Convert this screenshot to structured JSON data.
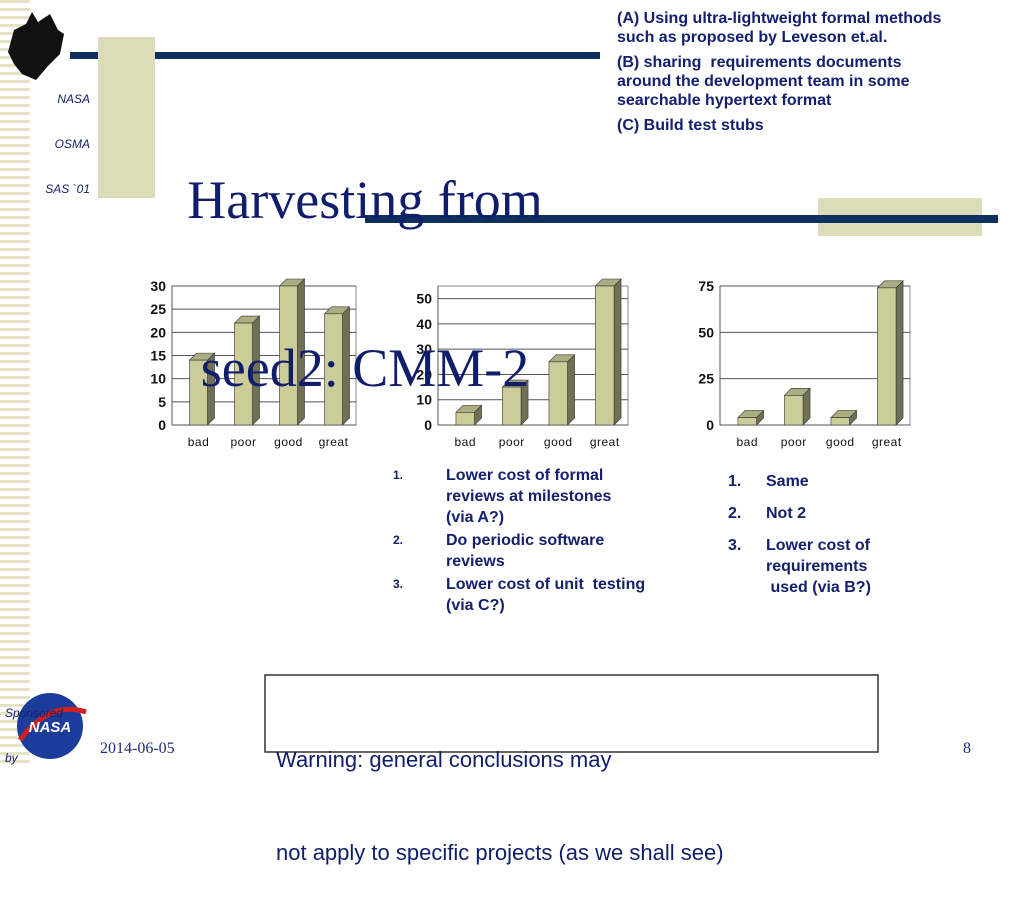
{
  "logo": {
    "lines": [
      "NASA",
      "OSMA",
      "SAS `01"
    ]
  },
  "sponsor": {
    "lines": [
      "Sponsored",
      "by"
    ],
    "badge": "NASA"
  },
  "title": [
    "Harvesting from",
    "seed2: CMM-2"
  ],
  "notes": [
    [
      "(A) Using ultra-lightweight formal methods",
      "such as proposed by Leveson et.al."
    ],
    [
      "(B) sharing  requirements documents",
      "around the development team in some",
      "searchable hypertext format"
    ],
    [
      "(C) Build test stubs"
    ]
  ],
  "chart_data": [
    {
      "type": "bar",
      "categories": [
        "bad",
        "poor",
        "good",
        "great"
      ],
      "values": [
        14,
        22,
        30,
        24
      ],
      "color": "#cccc99",
      "ylim": [
        0,
        30
      ],
      "yticks": [
        0,
        5,
        10,
        15,
        20,
        25,
        30
      ],
      "grid": true
    },
    {
      "type": "bar",
      "categories": [
        "bad",
        "poor",
        "good",
        "great"
      ],
      "values": [
        5,
        15,
        25,
        55
      ],
      "color": "#cccc99",
      "ylim": [
        0,
        55
      ],
      "yticks": [
        0,
        10,
        20,
        30,
        40,
        50
      ],
      "grid": true
    },
    {
      "type": "bar",
      "categories": [
        "bad",
        "poor",
        "good",
        "great"
      ],
      "values": [
        4,
        16,
        4,
        74
      ],
      "color": "#cccc99",
      "ylim": [
        0,
        75
      ],
      "yticks": [
        0,
        25,
        50,
        75
      ],
      "grid": true
    }
  ],
  "list_middle": [
    {
      "number": "1.",
      "lines": [
        "Lower cost of formal",
        "reviews at milestones",
        "(via A?)"
      ]
    },
    {
      "number": "2.",
      "lines": [
        "Do periodic software",
        "reviews"
      ]
    },
    {
      "number": "3.",
      "lines": [
        "Lower cost of unit  testing",
        "(via C?)"
      ]
    }
  ],
  "list_right": [
    {
      "number": "1.",
      "lines": [
        "Same"
      ]
    },
    {
      "number": "2.",
      "lines": [
        "Not 2"
      ]
    },
    {
      "number": "3.",
      "lines": [
        "Lower cost of",
        "requirements",
        " used (via B?)"
      ]
    }
  ],
  "warning": [
    "Warning: general conclusions may",
    "not apply to specific projects (as we shall see)"
  ],
  "footer": {
    "date": "2014-06-05",
    "page": "8"
  }
}
